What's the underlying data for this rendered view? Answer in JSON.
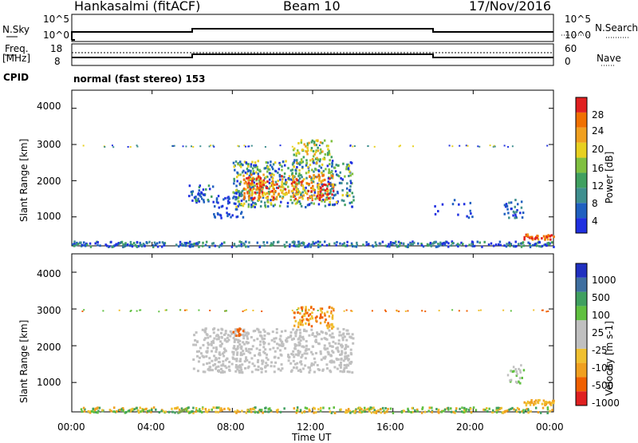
{
  "header": {
    "title": "Hankasalmi (fitACF)",
    "beam": "Beam 10",
    "date": "17/Nov/2016"
  },
  "status": {
    "nsky_label": "N.Sky",
    "nsky_ticks": [
      "10^5",
      "10^0"
    ],
    "nsearch_label": "N.Search",
    "nsearch_ticks": [
      "10^5",
      "10^0"
    ],
    "freq_label_1": "Freq.",
    "freq_label_2": "[MHz]",
    "freq_ticks": [
      "18",
      "8"
    ],
    "nave_label": "Nave",
    "nave_ticks": [
      "60",
      "0"
    ],
    "cpid_label": "CPID",
    "cpid_text": "normal (fast stereo) 153"
  },
  "colors": {
    "power_bar": [
      "#2030e0",
      "#2060c0",
      "#3f8f8f",
      "#40a060",
      "#80c040",
      "#e8d020",
      "#f0a020",
      "#f07000",
      "#e02020"
    ],
    "velocity_bar": [
      "#e02020",
      "#f06000",
      "#f0a020",
      "#f0c030",
      "#c0c0c0",
      "#c0c0c0",
      "#60c040",
      "#40a060",
      "#3f6fa0",
      "#2030c0"
    ]
  },
  "chart_data": [
    {
      "type": "heatmap",
      "panel": "power",
      "ylabel": "Slant Range [km]",
      "yticks": [
        "4000",
        "3000",
        "2000",
        "1000"
      ],
      "ylim": [
        200,
        4500
      ],
      "xlabel": "Time UT",
      "xticks": [
        "00:00",
        "04:00",
        "08:00",
        "12:00",
        "16:00",
        "20:00",
        "00:00"
      ],
      "xlim": [
        0,
        24
      ],
      "colorbar_label": "Power [dB]",
      "colorbar_ticks": [
        "28",
        "24",
        "20",
        "16",
        "12",
        "8",
        "4"
      ],
      "colorbar_range": [
        0,
        32
      ]
    },
    {
      "type": "heatmap",
      "panel": "velocity",
      "ylabel": "Slant Range [km]",
      "yticks": [
        "4000",
        "3000",
        "2000",
        "1000"
      ],
      "ylim": [
        200,
        4500
      ],
      "xlabel": "Time UT",
      "xticks": [
        "00:00",
        "04:00",
        "08:00",
        "12:00",
        "16:00",
        "20:00",
        "00:00"
      ],
      "xlim": [
        0,
        24
      ],
      "colorbar_label": "Velocity [m s-1]",
      "colorbar_ticks": [
        "1000",
        "500",
        "100",
        "25",
        "-25",
        "-100",
        "-500",
        "-1000"
      ]
    }
  ]
}
